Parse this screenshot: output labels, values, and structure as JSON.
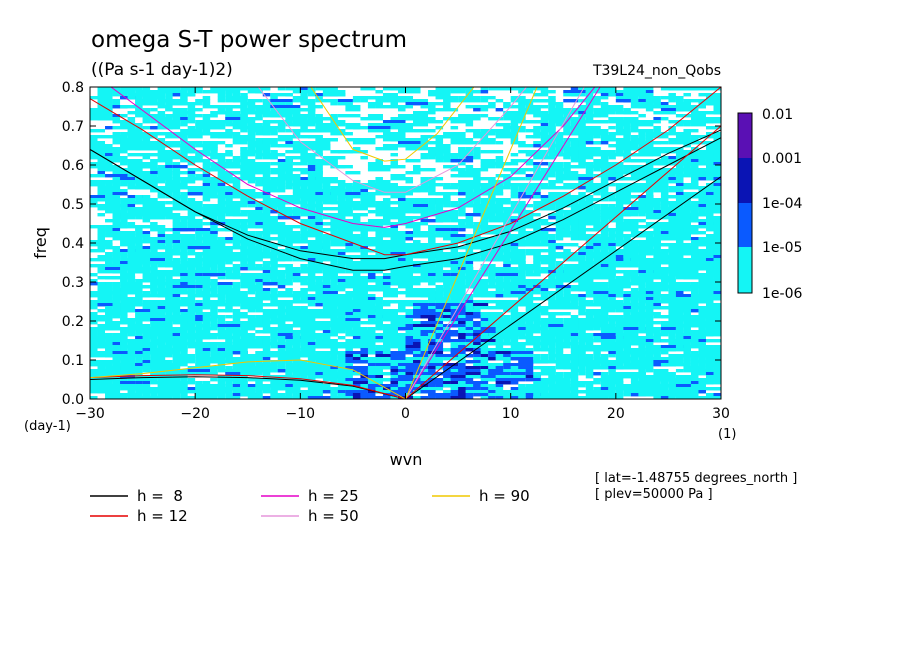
{
  "chart_data": {
    "type": "heatmap",
    "title": "omega S-T power spectrum",
    "subtitle": "((Pa s-1 day-1)2)",
    "run_label": "T39L24_non_Qobs",
    "xlabel": "wvn",
    "ylabel": "freq",
    "x_unit": "(1)",
    "y_unit": "(day-1)",
    "xlim": [
      -30,
      30
    ],
    "ylim": [
      0,
      0.8
    ],
    "x_ticks": [
      -30,
      -20,
      -10,
      0,
      10,
      20,
      30
    ],
    "y_ticks": [
      0.0,
      0.1,
      0.2,
      0.3,
      0.4,
      0.5,
      0.6,
      0.7,
      0.8
    ],
    "x_tick_labels": [
      "−30",
      "−20",
      "−10",
      "0",
      "10",
      "20",
      "30"
    ],
    "y_tick_labels": [
      "0.0",
      "0.1",
      "0.2",
      "0.3",
      "0.4",
      "0.5",
      "0.6",
      "0.7",
      "0.8"
    ],
    "colorbar": {
      "labels": [
        "0.01",
        "0.001",
        "1e-04",
        "1e-05",
        "1e-06"
      ],
      "colors": [
        "#5a10b4",
        "#0a14b4",
        "#0a5aff",
        "#0aa0ff",
        "#14f5f5"
      ]
    },
    "info_lines": [
      "[ lat=-1.48755 degrees_north ]",
      "[ plev=50000 Pa ]"
    ],
    "legend": [
      {
        "label": "h =  8",
        "color": "#000000"
      },
      {
        "label": "h = 12",
        "color": "#e60000"
      },
      {
        "label": "h = 25",
        "color": "#e600c8"
      },
      {
        "label": "h = 50",
        "color": "#e696dc"
      },
      {
        "label": "h = 90",
        "color": "#f0c800"
      }
    ],
    "dispersion_curves": [
      {
        "h": 8,
        "color": "#000000",
        "branches": [
          {
            "x": [
              -30,
              -25,
              -20,
              -15,
              -10,
              -5,
              -2,
              0,
              5,
              10,
              15,
              20,
              25,
              30
            ],
            "y": [
              0.64,
              0.56,
              0.48,
              0.41,
              0.36,
              0.33,
              0.33,
              0.34,
              0.36,
              0.4,
              0.46,
              0.53,
              0.6,
              0.67
            ]
          },
          {
            "x": [
              -30,
              -25,
              -20,
              -15,
              -10,
              -5,
              -2,
              0,
              5,
              10,
              15,
              20,
              25,
              30
            ],
            "y": [
              0.64,
              0.56,
              0.48,
              0.42,
              0.38,
              0.36,
              0.36,
              0.37,
              0.39,
              0.43,
              0.49,
              0.56,
              0.63,
              0.69
            ]
          },
          {
            "x": [
              -30,
              -25,
              -20,
              -15,
              -10,
              -5,
              0
            ],
            "y": [
              0.05,
              0.055,
              0.057,
              0.055,
              0.048,
              0.033,
              0.0
            ]
          },
          {
            "x": [
              0,
              30
            ],
            "y": [
              0.0,
              0.57
            ]
          }
        ]
      },
      {
        "h": 12,
        "color": "#e60000",
        "branches": [
          {
            "x": [
              -30,
              -25,
              -20,
              -15,
              -10,
              -5,
              -2,
              0,
              5,
              10,
              15,
              20,
              25,
              30
            ],
            "y": [
              0.77,
              0.69,
              0.6,
              0.52,
              0.45,
              0.4,
              0.37,
              0.37,
              0.4,
              0.45,
              0.52,
              0.6,
              0.69,
              0.8
            ]
          },
          {
            "x": [
              -30,
              -25,
              -20,
              -15,
              -10,
              -5,
              0
            ],
            "y": [
              0.055,
              0.06,
              0.062,
              0.06,
              0.052,
              0.035,
              0.0
            ]
          },
          {
            "x": [
              0,
              30
            ],
            "y": [
              0.0,
              0.7
            ]
          }
        ]
      },
      {
        "h": 25,
        "color": "#e600c8",
        "branches": [
          {
            "x": [
              -28,
              -25,
              -20,
              -15,
              -10,
              -5,
              -2,
              0,
              5,
              10,
              15,
              18
            ],
            "y": [
              0.8,
              0.74,
              0.64,
              0.55,
              0.49,
              0.45,
              0.44,
              0.45,
              0.49,
              0.57,
              0.7,
              0.8
            ]
          },
          {
            "x": [
              0,
              18.5
            ],
            "y": [
              0.0,
              0.8
            ]
          }
        ]
      },
      {
        "h": 50,
        "color": "#e696dc",
        "branches": [
          {
            "x": [
              -14,
              -10,
              -5,
              -2,
              0,
              5,
              10,
              11.5
            ],
            "y": [
              0.8,
              0.66,
              0.56,
              0.53,
              0.53,
              0.6,
              0.75,
              0.8
            ]
          },
          {
            "x": [
              0,
              17
            ],
            "y": [
              0.0,
              0.8
            ]
          }
        ]
      },
      {
        "h": 90,
        "color": "#f0c800",
        "branches": [
          {
            "x": [
              -9,
              -5,
              -2,
              0,
              3,
              6.5
            ],
            "y": [
              0.8,
              0.64,
              0.61,
              0.615,
              0.68,
              0.8
            ]
          },
          {
            "x": [
              -30,
              -25,
              -20,
              -15,
              -10,
              -5,
              0
            ],
            "y": [
              0.055,
              0.065,
              0.08,
              0.095,
              0.1,
              0.075,
              0.0
            ]
          },
          {
            "x": [
              0,
              12.5
            ],
            "y": [
              0.0,
              0.8
            ]
          }
        ]
      }
    ]
  }
}
